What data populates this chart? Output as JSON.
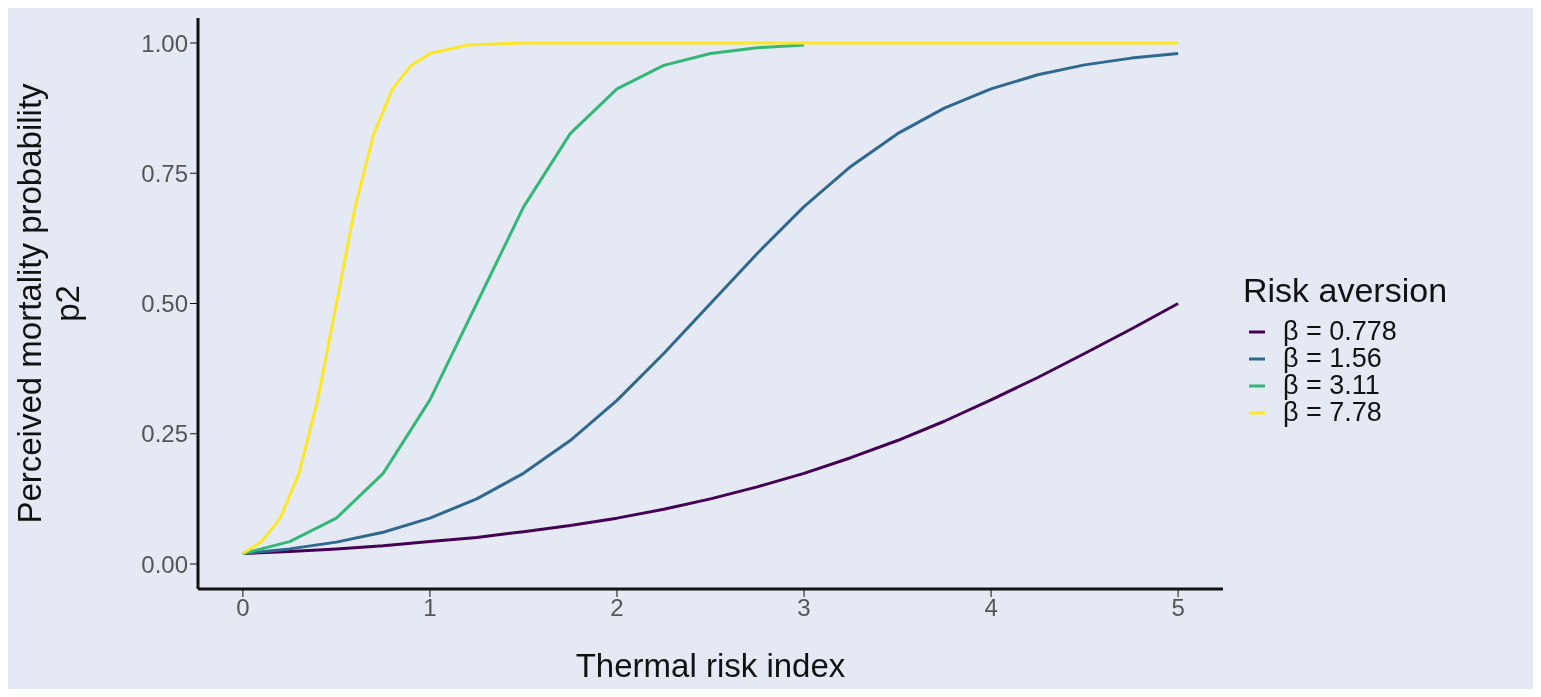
{
  "chart_data": {
    "type": "line",
    "xlabel": "Thermal risk index",
    "ylabel": "Perceived mortality probability\np2",
    "legend_title": "Risk aversion",
    "legend": "right",
    "grid": false,
    "marker": "none",
    "line_style": "solid",
    "xlim": [
      -0.24,
      5.24
    ],
    "xticks": [
      0,
      1,
      2,
      3,
      4,
      5
    ],
    "ylim": [
      -0.048,
      1.048
    ],
    "yticks": [
      {
        "value": 0,
        "label": "0.00"
      },
      {
        "value": 0.25,
        "label": "0.25"
      },
      {
        "value": 0.5,
        "label": "0.50"
      },
      {
        "value": 0.75,
        "label": "0.75"
      },
      {
        "value": 1,
        "label": "1.00"
      }
    ],
    "series": [
      {
        "name": "β = 0.778",
        "color": "#440154",
        "x": [
          0,
          0.25,
          0.5,
          0.75,
          1,
          1.25,
          1.5,
          1.75,
          2,
          2.25,
          2.5,
          2.75,
          3,
          3.25,
          3.5,
          3.75,
          4,
          4.25,
          4.5,
          4.75,
          5
        ],
        "values": [
          0.02,
          0.024,
          0.029,
          0.035,
          0.043,
          0.051,
          0.062,
          0.074,
          0.088,
          0.105,
          0.125,
          0.148,
          0.174,
          0.204,
          0.237,
          0.274,
          0.315,
          0.358,
          0.404,
          0.451,
          0.5
        ]
      },
      {
        "name": "β = 1.56",
        "color": "#31688e",
        "x": [
          0,
          0.25,
          0.5,
          0.75,
          1,
          1.25,
          1.5,
          1.75,
          2,
          2.25,
          2.5,
          2.75,
          3,
          3.25,
          3.5,
          3.75,
          4,
          4.25,
          4.5,
          4.75,
          5
        ],
        "values": [
          0.02,
          0.029,
          0.042,
          0.061,
          0.088,
          0.125,
          0.174,
          0.237,
          0.314,
          0.404,
          0.5,
          0.596,
          0.686,
          0.763,
          0.826,
          0.875,
          0.912,
          0.939,
          0.958,
          0.971,
          0.98
        ]
      },
      {
        "name": "β = 3.11",
        "color": "#35b779",
        "x": [
          0,
          0.25,
          0.5,
          0.75,
          1,
          1.25,
          1.5,
          1.75,
          2,
          2.25,
          2.5,
          2.75,
          3
        ],
        "values": [
          0.02,
          0.043,
          0.088,
          0.174,
          0.315,
          0.5,
          0.685,
          0.826,
          0.912,
          0.957,
          0.98,
          0.991,
          0.996
        ]
      },
      {
        "name": "β = 7.78",
        "color": "#fde725",
        "x": [
          0,
          0.1,
          0.2,
          0.3,
          0.4,
          0.5,
          0.6,
          0.7,
          0.8,
          0.9,
          1,
          1.2,
          1.5,
          2,
          3,
          4,
          5
        ],
        "values": [
          0.02,
          0.043,
          0.088,
          0.174,
          0.315,
          0.5,
          0.685,
          0.826,
          0.912,
          0.957,
          0.98,
          0.996,
          1,
          1,
          1,
          1,
          1
        ]
      }
    ]
  }
}
